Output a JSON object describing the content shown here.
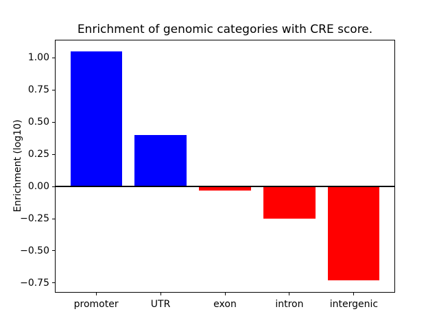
{
  "figure": {
    "title": "Enrichment of genomic categories with CRE score.",
    "ylabel": "Enrichment (log10)",
    "background_color": "#ffffff",
    "text_color": "#000000"
  },
  "chart_data": {
    "type": "bar",
    "title": "Enrichment of genomic categories with CRE score.",
    "xlabel": "",
    "ylabel": "Enrichment (log10)",
    "categories": [
      "promoter",
      "UTR",
      "exon",
      "intron",
      "intergenic"
    ],
    "values": [
      1.05,
      0.4,
      -0.03,
      -0.25,
      -0.73
    ],
    "bar_colors": [
      "#0000ff",
      "#0000ff",
      "#ff0000",
      "#ff0000",
      "#ff0000"
    ],
    "positive_color": "#0000ff",
    "negative_color": "#ff0000",
    "bar_width_fraction": 0.8,
    "ylim": [
      -0.825,
      1.14
    ],
    "yticks": [
      {
        "value": 1.0,
        "label": "1.00"
      },
      {
        "value": 0.75,
        "label": "0.75"
      },
      {
        "value": 0.5,
        "label": "0.50"
      },
      {
        "value": 0.25,
        "label": "0.25"
      },
      {
        "value": 0.0,
        "label": "0.00"
      },
      {
        "value": -0.25,
        "label": "−0.25"
      },
      {
        "value": -0.5,
        "label": "−0.50"
      },
      {
        "value": -0.75,
        "label": "−0.75"
      }
    ],
    "grid": false,
    "legend": null,
    "zero_line": true,
    "zero_line_color": "#000000"
  }
}
